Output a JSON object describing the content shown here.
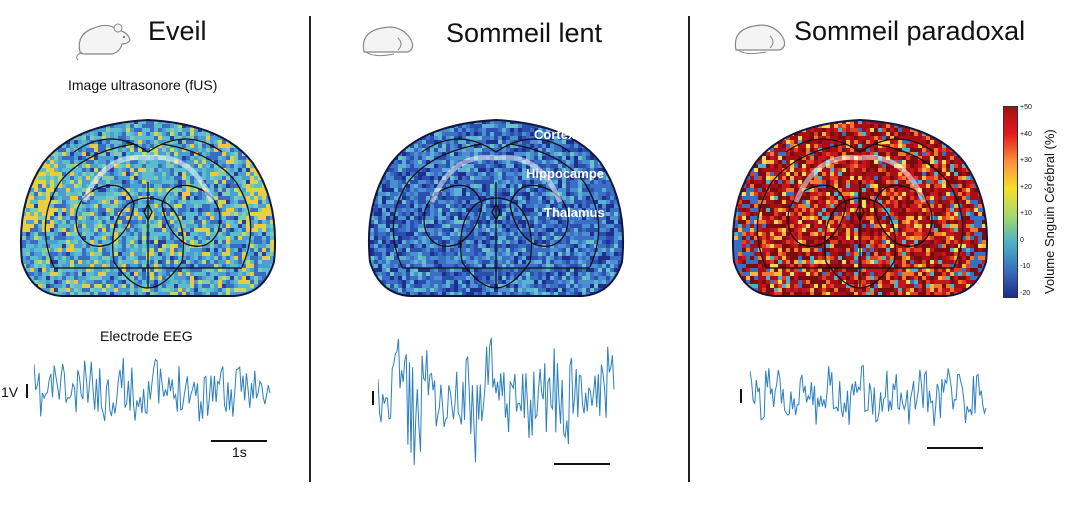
{
  "panels": [
    {
      "title": "Eveil",
      "state": "wake"
    },
    {
      "title": "Sommeil lent",
      "state": "slow"
    },
    {
      "title": "Sommeil paradoxal",
      "state": "rem"
    }
  ],
  "labels": {
    "image_title": "Image ultrasonore (fUS)",
    "eeg_title": "Electrode EEG",
    "voltage_scale": "1V",
    "time_scale": "1s"
  },
  "regions": {
    "cortex": "Cortex",
    "hippocampus": "Hippocampe",
    "thalamus": "Thalamus"
  },
  "colorbar": {
    "title": "Volume Snguin Cérébral (%)",
    "ticks": [
      "+50",
      "+40",
      "+30",
      "+20",
      "+10",
      "0",
      "-10",
      "-20"
    ],
    "colors": [
      "#a50f15",
      "#e31a1c",
      "#fd8d3c",
      "#f5e02a",
      "#a6d96a",
      "#4ab3c6",
      "#3a6fc0",
      "#1d2c8a"
    ]
  },
  "icons": {
    "rat": "sleeping-rat-icon"
  }
}
